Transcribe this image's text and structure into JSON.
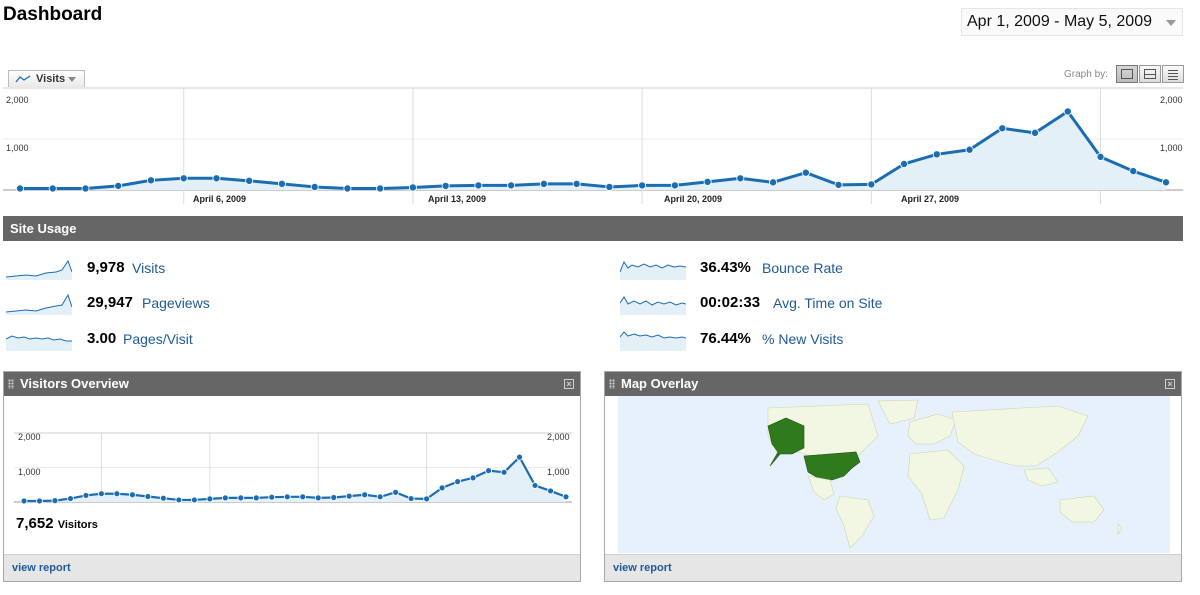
{
  "page": {
    "title": "Dashboard"
  },
  "date_range": {
    "label": "Apr 1, 2009 - May 5, 2009"
  },
  "graph_controls": {
    "metric_label": "Visits",
    "graph_by_label": "Graph by:",
    "graph_by_options": [
      "day",
      "week",
      "month"
    ],
    "graph_by_selected": "day"
  },
  "main_chart": {
    "y_ticks": [
      "2,000",
      "1,000"
    ],
    "date_labels": [
      "April 6, 2009",
      "April 13, 2009",
      "April 20, 2009",
      "April 27, 2009"
    ]
  },
  "site_usage": {
    "title": "Site Usage",
    "metrics": [
      {
        "value": "9,978",
        "label": "Visits"
      },
      {
        "value": "29,947",
        "label": "Pageviews"
      },
      {
        "value": "3.00",
        "label": "Pages/Visit"
      },
      {
        "value": "36.43%",
        "label": "Bounce Rate"
      },
      {
        "value": "00:02:33",
        "label": "Avg. Time on Site"
      },
      {
        "value": "76.44%",
        "label": "% New Visits"
      }
    ]
  },
  "visitors_overview": {
    "title": "Visitors Overview",
    "y_ticks": [
      "2,000",
      "1,000"
    ],
    "count": "7,652",
    "count_label": "Visitors",
    "link": "view report"
  },
  "map_overlay": {
    "title": "Map Overlay",
    "link": "view report"
  },
  "colors": {
    "line": "#1a6db3",
    "fill": "#e4f0f8",
    "header_bar": "#666666",
    "link": "#1d5a97",
    "map_ocean": "#e7f1fb",
    "map_land": "#f2f7e3",
    "map_highlight": "#2f7a1d"
  },
  "chart_data": [
    {
      "type": "area",
      "series": [
        {
          "name": "Visits",
          "values": [
            30,
            30,
            30,
            80,
            190,
            230,
            230,
            180,
            120,
            60,
            30,
            30,
            50,
            80,
            90,
            90,
            120,
            120,
            60,
            90,
            90,
            160,
            230,
            150,
            340,
            100,
            110,
            510,
            700,
            790,
            1210,
            1120,
            1540,
            650,
            370,
            150
          ]
        }
      ],
      "ylim": [
        0,
        2000
      ],
      "y_ticks": [
        1000,
        2000
      ],
      "grid": true
    },
    {
      "type": "area",
      "series": [
        {
          "name": "Visitors",
          "values": [
            30,
            30,
            40,
            100,
            190,
            240,
            240,
            210,
            160,
            110,
            60,
            60,
            90,
            120,
            120,
            120,
            140,
            150,
            150,
            120,
            130,
            170,
            210,
            150,
            280,
            100,
            90,
            410,
            590,
            700,
            910,
            860,
            1300,
            480,
            320,
            150
          ]
        }
      ],
      "ylim": [
        0,
        2000
      ],
      "y_ticks": [
        1000,
        2000
      ],
      "grid": true
    }
  ]
}
